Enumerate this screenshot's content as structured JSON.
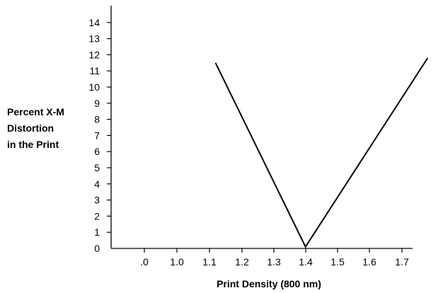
{
  "chart_data": {
    "type": "line",
    "title": "",
    "xlabel": "Print Density (800 nm)",
    "ylabel": [
      "Percent X-M",
      "Distortion",
      "in the Print"
    ],
    "x_tick_labels": [
      ".0",
      "1.0",
      "1.1",
      "1.2",
      "1.3",
      "1.4",
      "1.5",
      "1.6",
      "1.7"
    ],
    "y_tick_labels": [
      "0",
      "1",
      "2",
      "3",
      "4",
      "5",
      "6",
      "7",
      "8",
      "9",
      "10",
      "11",
      "12",
      "13",
      "14"
    ],
    "y_range": [
      0,
      14
    ],
    "grid": false,
    "series": [
      {
        "points": [
          {
            "x": 1.12,
            "y": 11.5
          },
          {
            "x": 1.4,
            "y": 0.1
          },
          {
            "x": 1.78,
            "y": 11.8
          }
        ]
      }
    ]
  }
}
